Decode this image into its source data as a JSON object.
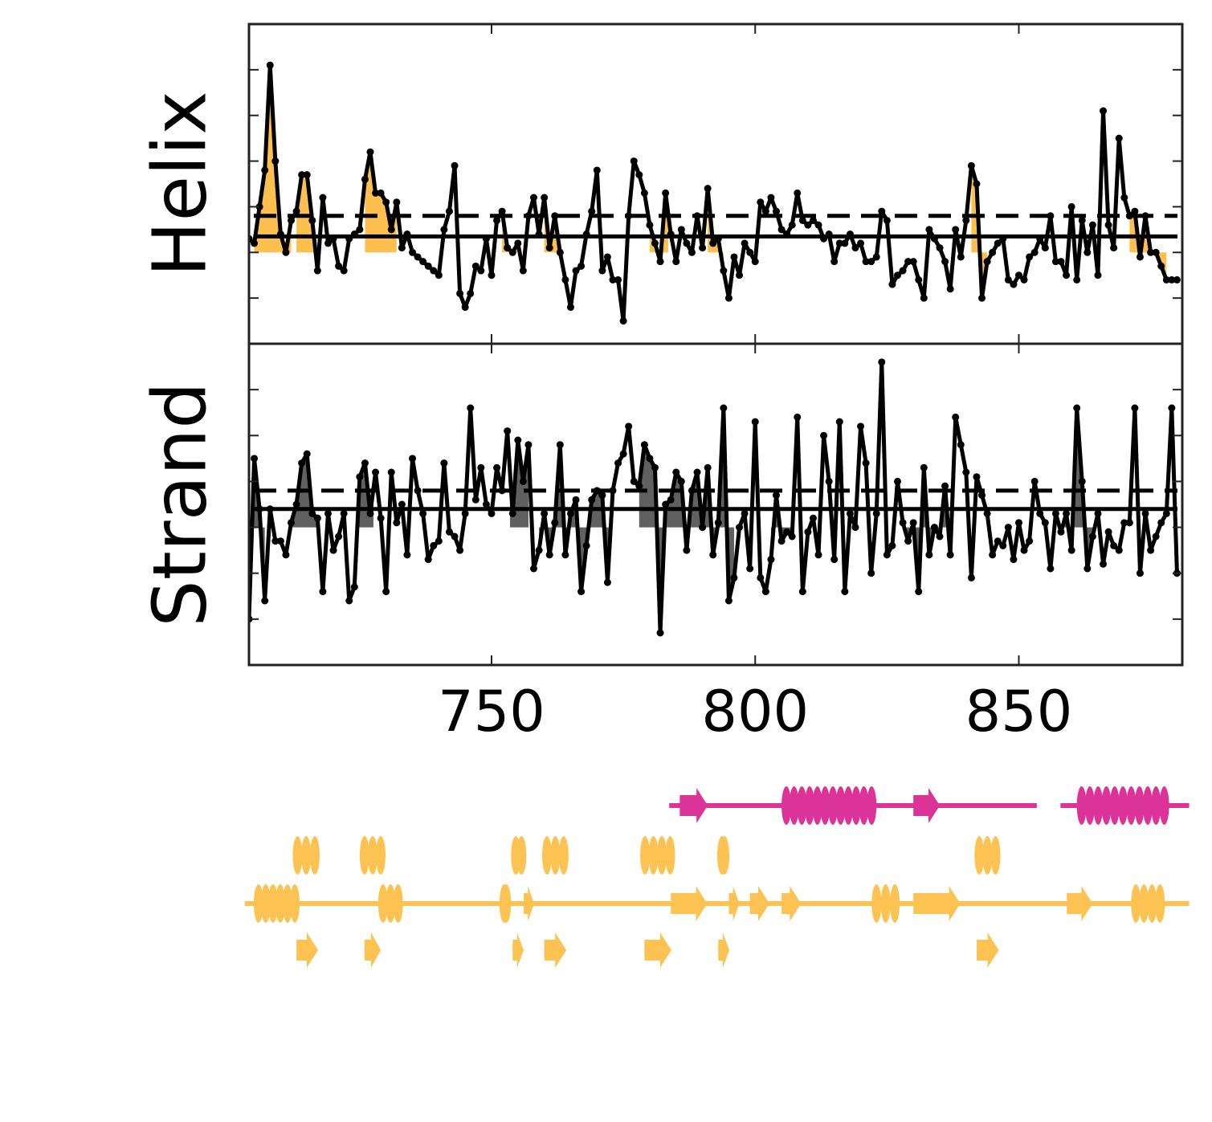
{
  "chart_data": [
    {
      "type": "line",
      "ylabel": "Helix",
      "color": "#000000",
      "fill_color": "#fdc04f",
      "xlim": [
        704,
        881
      ],
      "ylim": [
        -1,
        6
      ],
      "yticks": [
        0,
        1,
        2,
        3,
        4,
        5
      ],
      "reference_lines": [
        {
          "value": 1.35,
          "style": "solid"
        },
        {
          "value": 1.8,
          "style": "dashed"
        }
      ],
      "fill_baseline": 1.0,
      "fill_ranges": [
        [
          705,
          712
        ],
        [
          713,
          717
        ],
        [
          726,
          732
        ],
        [
          752,
          755
        ],
        [
          760,
          763.4
        ],
        [
          780,
          783.5
        ],
        [
          791,
          794
        ],
        [
          841,
          844
        ],
        [
          871,
          878
        ]
      ],
      "x": [
        704,
        705,
        706,
        707,
        708,
        709,
        710,
        711,
        712,
        713,
        714,
        715,
        716,
        717,
        718,
        719,
        720,
        721,
        722,
        723,
        724,
        725,
        726,
        727,
        728,
        729,
        730,
        731,
        732,
        733,
        734,
        735,
        736,
        737,
        738,
        739,
        740,
        741,
        742,
        743,
        744,
        745,
        746,
        747,
        748,
        749,
        750,
        751,
        752,
        753,
        754,
        755,
        756,
        757,
        758,
        759,
        760,
        761,
        762,
        763,
        764,
        765,
        766,
        767,
        768,
        769,
        770,
        771,
        772,
        773,
        774,
        775,
        776,
        777,
        778,
        779,
        780,
        781,
        782,
        783,
        784,
        785,
        786,
        787,
        788,
        789,
        790,
        791,
        792,
        793,
        794,
        795,
        796,
        797,
        798,
        799,
        800,
        801,
        802,
        803,
        804,
        805,
        806,
        807,
        808,
        809,
        810,
        811,
        812,
        813,
        814,
        815,
        816,
        817,
        818,
        819,
        820,
        821,
        822,
        823,
        824,
        825,
        826,
        827,
        828,
        829,
        830,
        831,
        832,
        833,
        834,
        835,
        836,
        837,
        838,
        839,
        840,
        841,
        842,
        843,
        844,
        845,
        846,
        847,
        848,
        849,
        850,
        851,
        852,
        853,
        854,
        855,
        856,
        857,
        858,
        859,
        860,
        861,
        862,
        863,
        864,
        865,
        866,
        867,
        868,
        869,
        870,
        871,
        872,
        873,
        874,
        875,
        876,
        877,
        878,
        879,
        880
      ],
      "values": [
        1.3,
        1.2,
        2.0,
        2.8,
        5.1,
        3.0,
        1.4,
        1.0,
        1.7,
        1.9,
        2.7,
        2.7,
        1.7,
        0.6,
        2.2,
        1.2,
        1.3,
        0.7,
        0.6,
        1.3,
        1.4,
        1.5,
        2.6,
        3.2,
        2.3,
        2.3,
        2.1,
        1.5,
        2.1,
        1.1,
        1.4,
        1.0,
        0.9,
        0.8,
        0.7,
        0.6,
        0.5,
        1.5,
        1.9,
        2.9,
        0.1,
        -0.2,
        0.1,
        0.7,
        0.6,
        1.3,
        0.5,
        1.7,
        1.9,
        1.1,
        1.0,
        1.2,
        0.6,
        1.8,
        2.2,
        1.4,
        2.2,
        1.1,
        1.8,
        1.0,
        0.4,
        -0.2,
        0.6,
        0.7,
        1.4,
        1.9,
        2.8,
        0.6,
        0.9,
        0.4,
        0.4,
        -0.5,
        1.8,
        3.0,
        2.7,
        2.3,
        1.6,
        1.2,
        0.8,
        2.3,
        1.4,
        0.8,
        1.5,
        1.2,
        1.0,
        1.8,
        1.1,
        2.4,
        1.2,
        1.3,
        0.6,
        0.0,
        0.9,
        0.5,
        1.2,
        1.0,
        0.8,
        2.1,
        1.9,
        2.2,
        1.9,
        1.5,
        1.4,
        1.6,
        2.3,
        1.7,
        1.6,
        1.7,
        1.6,
        1.3,
        1.4,
        0.8,
        1.2,
        1.2,
        1.4,
        1.1,
        1.2,
        0.8,
        0.8,
        0.9,
        1.9,
        1.7,
        0.3,
        0.5,
        0.6,
        0.8,
        0.8,
        0.4,
        0.0,
        1.5,
        1.3,
        1.1,
        0.8,
        0.2,
        1.5,
        0.9,
        1.7,
        2.9,
        2.5,
        0.0,
        0.8,
        1.0,
        1.2,
        1.3,
        0.4,
        0.3,
        0.5,
        0.4,
        0.9,
        1.0,
        1.3,
        1.1,
        1.8,
        0.8,
        0.8,
        0.5,
        2.0,
        0.4,
        1.7,
        1.0,
        1.6,
        0.5,
        4.1,
        1.6,
        1.1,
        3.5,
        2.2,
        1.8,
        1.9,
        0.9,
        1.8,
        1.0,
        1.0,
        0.7,
        0.4,
        0.4,
        0.4
      ]
    },
    {
      "type": "line",
      "ylabel": "Strand",
      "color": "#000000",
      "fill_color": "#606060",
      "xlim": [
        704,
        881
      ],
      "ylim": [
        -1,
        6
      ],
      "yticks": [
        0,
        1,
        2,
        3,
        4,
        5
      ],
      "xticks": [
        750,
        800,
        850
      ],
      "reference_lines": [
        {
          "value": 2.4,
          "style": "solid"
        },
        {
          "value": 2.8,
          "style": "dashed"
        }
      ],
      "fill_baseline": 2.0,
      "fill_ranges": [
        [
          704,
          707
        ],
        [
          712,
          717
        ],
        [
          724.5,
          727.6
        ],
        [
          753.5,
          757
        ],
        [
          759,
          772.5
        ],
        [
          778,
          796
        ],
        [
          803,
          807
        ],
        [
          828.7,
          837.4
        ],
        [
          858.7,
          864
        ]
      ],
      "x": [
        704,
        705,
        706,
        707,
        708,
        709,
        710,
        711,
        712,
        713,
        714,
        715,
        716,
        717,
        718,
        719,
        720,
        721,
        722,
        723,
        724,
        725,
        726,
        727,
        728,
        729,
        730,
        731,
        732,
        733,
        734,
        735,
        736,
        737,
        738,
        739,
        740,
        741,
        742,
        743,
        744,
        745,
        746,
        747,
        748,
        749,
        750,
        751,
        752,
        753,
        754,
        755,
        756,
        757,
        758,
        759,
        760,
        761,
        762,
        763,
        764,
        765,
        766,
        767,
        768,
        769,
        770,
        771,
        772,
        773,
        774,
        775,
        776,
        777,
        778,
        779,
        780,
        781,
        782,
        783,
        784,
        785,
        786,
        787,
        788,
        789,
        790,
        791,
        792,
        793,
        794,
        795,
        796,
        797,
        798,
        799,
        800,
        801,
        802,
        803,
        804,
        805,
        806,
        807,
        808,
        809,
        810,
        811,
        812,
        813,
        814,
        815,
        816,
        817,
        818,
        819,
        820,
        821,
        822,
        823,
        824,
        825,
        826,
        827,
        828,
        829,
        830,
        831,
        832,
        833,
        834,
        835,
        836,
        837,
        838,
        839,
        840,
        841,
        842,
        843,
        844,
        845,
        846,
        847,
        848,
        849,
        850,
        851,
        852,
        853,
        854,
        855,
        856,
        857,
        858,
        859,
        860,
        861,
        862,
        863,
        864,
        865,
        866,
        867,
        868,
        869,
        870,
        871,
        872,
        873,
        874,
        875,
        876,
        877,
        878,
        879,
        880
      ],
      "values": [
        0.0,
        3.5,
        2.4,
        0.4,
        2.4,
        1.7,
        1.7,
        1.4,
        2.1,
        2.5,
        3.4,
        3.6,
        2.3,
        2.2,
        0.6,
        2.3,
        1.5,
        1.8,
        2.3,
        0.4,
        0.7,
        3.1,
        3.4,
        2.3,
        3.2,
        2.2,
        0.6,
        3.2,
        2.1,
        2.5,
        1.4,
        3.5,
        2.8,
        2.3,
        1.3,
        1.6,
        1.7,
        3.4,
        1.9,
        1.8,
        1.5,
        2.3,
        4.6,
        2.6,
        3.3,
        2.5,
        2.3,
        3.3,
        2.8,
        4.1,
        2.3,
        3.9,
        3.0,
        3.8,
        1.1,
        1.5,
        2.3,
        1.4,
        2.1,
        3.8,
        1.4,
        2.3,
        2.6,
        0.6,
        1.6,
        2.6,
        2.8,
        2.7,
        0.8,
        2.8,
        3.4,
        3.6,
        4.2,
        3.0,
        2.9,
        3.8,
        3.5,
        3.3,
        -0.3,
        2.5,
        2.6,
        3.2,
        3.0,
        1.5,
        2.8,
        3.2,
        2.0,
        3.3,
        1.4,
        2.1,
        4.6,
        0.4,
        0.9,
        2.0,
        2.3,
        1.1,
        4.3,
        0.9,
        0.6,
        1.3,
        2.7,
        1.7,
        1.9,
        1.8,
        4.4,
        0.6,
        1.9,
        2.2,
        1.4,
        4.0,
        3.0,
        1.3,
        4.3,
        0.6,
        2.3,
        2.0,
        4.2,
        3.4,
        1.0,
        2.3,
        5.6,
        1.4,
        1.6,
        3.0,
        2.1,
        1.7,
        2.1,
        0.6,
        3.3,
        1.4,
        2.0,
        1.8,
        2.9,
        1.4,
        4.4,
        3.8,
        3.2,
        0.9,
        3.1,
        2.7,
        2.3,
        1.4,
        1.7,
        1.6,
        2.0,
        1.3,
        2.1,
        1.5,
        1.7,
        3.0,
        2.3,
        2.1,
        1.1,
        2.3,
        1.9,
        2.3,
        1.5,
        4.6,
        3.0,
        1.1,
        1.8,
        2.3,
        1.2,
        1.9,
        1.6,
        1.5,
        2.1,
        2.1,
        4.6,
        1.0,
        2.3,
        1.5,
        1.8,
        2.1,
        2.3,
        4.6,
        1.0
      ]
    }
  ],
  "topology": [
    {
      "color": "#dc3399",
      "line": [
        [
          783.7,
          853.4
        ],
        [
          857.9,
          882.3
        ]
      ],
      "segments": [
        {
          "type": "strand",
          "start": 785.7,
          "end": 791
        },
        {
          "type": "helix",
          "start": 805,
          "end": 823
        },
        {
          "type": "strand",
          "start": 830,
          "end": 835
        },
        {
          "type": "helix",
          "start": 861,
          "end": 878.5
        }
      ]
    },
    {
      "color": "#fdc352",
      "line": [],
      "segments": [
        {
          "type": "helix",
          "start": 712.3,
          "end": 717.4
        },
        {
          "type": "helix",
          "start": 725,
          "end": 729.9
        },
        {
          "type": "helix",
          "start": 753.7,
          "end": 756.6
        },
        {
          "type": "helix",
          "start": 759.6,
          "end": 764.6
        },
        {
          "type": "helix",
          "start": 778.2,
          "end": 784.8
        },
        {
          "type": "helix",
          "start": 792.8,
          "end": 795.1
        },
        {
          "type": "helix",
          "start": 841.6,
          "end": 846.5
        }
      ]
    },
    {
      "color": "#fdc352",
      "line": [
        [
          703.2,
          882.3
        ]
      ],
      "segments": [
        {
          "type": "helix",
          "start": 704.9,
          "end": 713.6
        },
        {
          "type": "helix",
          "start": 728.5,
          "end": 733.2
        },
        {
          "type": "helix",
          "start": 751.5,
          "end": 753.7
        },
        {
          "type": "strand",
          "start": 756.1,
          "end": 758.1
        },
        {
          "type": "strand",
          "start": 784,
          "end": 790.9
        },
        {
          "type": "strand",
          "start": 795,
          "end": 797
        },
        {
          "type": "strand",
          "start": 799,
          "end": 802.7
        },
        {
          "type": "strand",
          "start": 805,
          "end": 808.7
        },
        {
          "type": "helix",
          "start": 822.1,
          "end": 827.4
        },
        {
          "type": "strand",
          "start": 830,
          "end": 838.9
        },
        {
          "type": "strand",
          "start": 859.1,
          "end": 864
        },
        {
          "type": "helix",
          "start": 871.3,
          "end": 877.7
        }
      ]
    },
    {
      "color": "#fdc352",
      "line": [],
      "segments": [
        {
          "type": "strand",
          "start": 713,
          "end": 717.1
        },
        {
          "type": "strand",
          "start": 725.9,
          "end": 729
        },
        {
          "type": "strand",
          "start": 754,
          "end": 756.1
        },
        {
          "type": "strand",
          "start": 760,
          "end": 764.2
        },
        {
          "type": "strand",
          "start": 779,
          "end": 784.1
        },
        {
          "type": "strand",
          "start": 793,
          "end": 795.1
        },
        {
          "type": "strand",
          "start": 842,
          "end": 846.2
        }
      ]
    }
  ]
}
